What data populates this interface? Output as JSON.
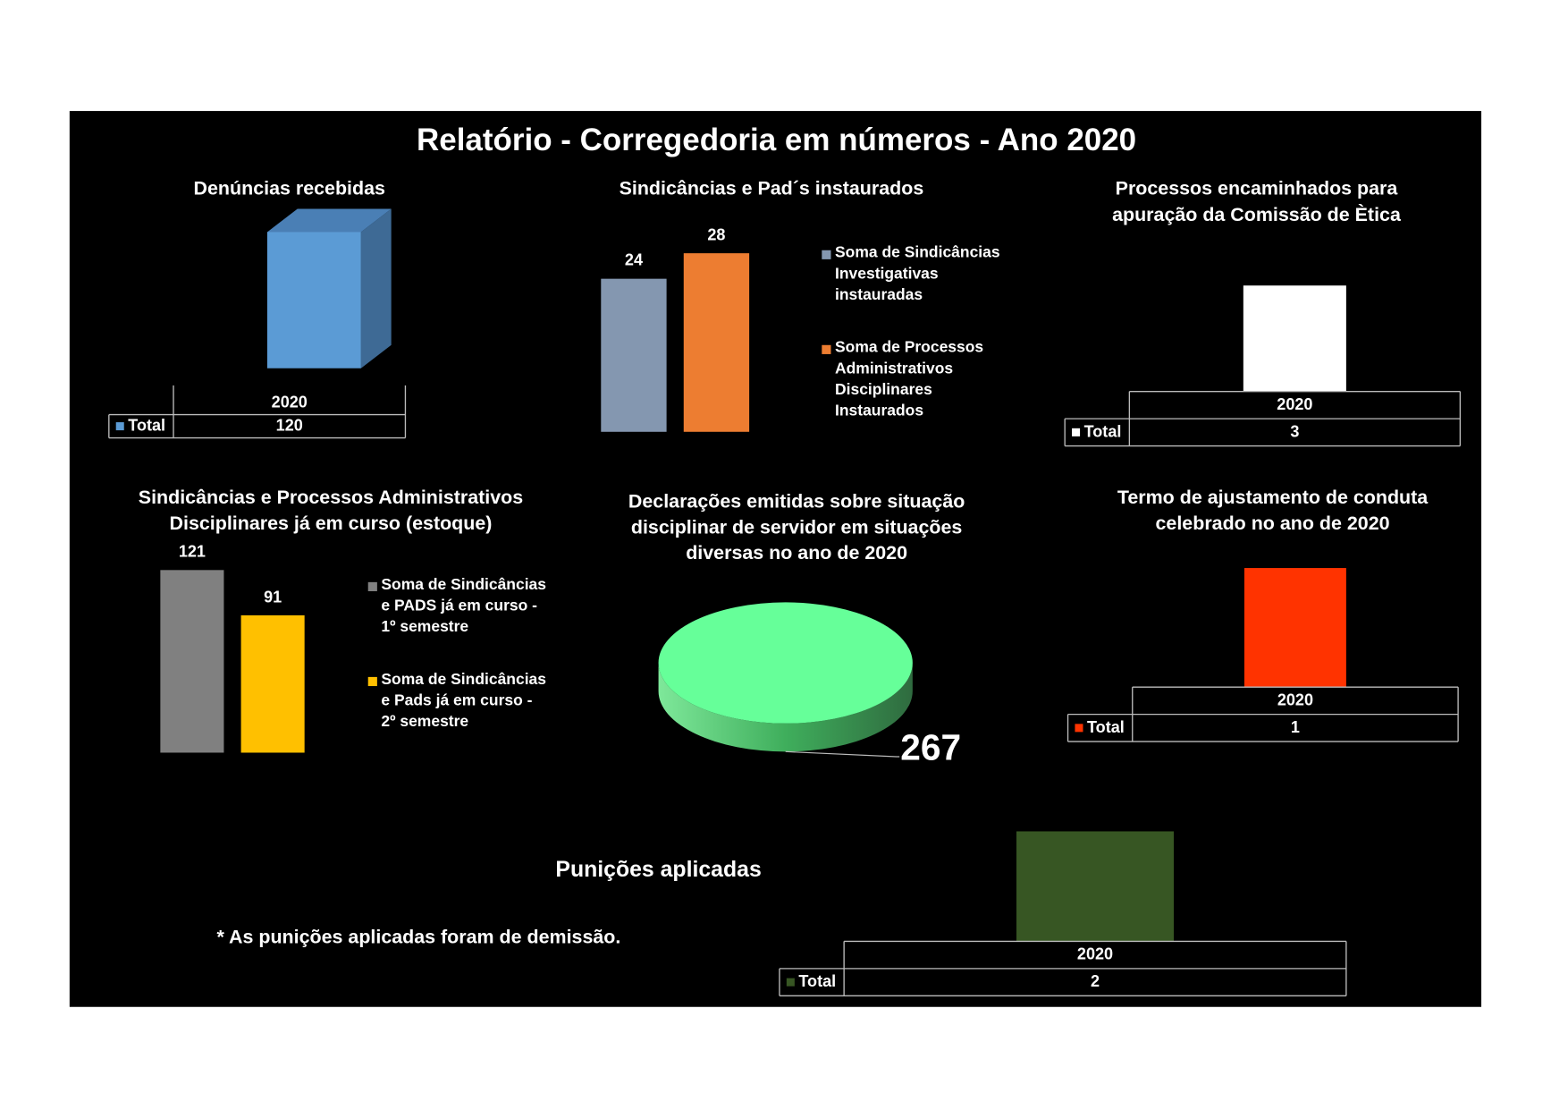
{
  "title": "Relatório - Corregedoria em números - Ano 2020",
  "chart_data": [
    {
      "type": "bar3d",
      "title": "Denúncias recebidas",
      "categories": [
        "2020"
      ],
      "series": [
        {
          "name": "Total",
          "color": "#5b9bd5",
          "values": [
            120
          ]
        }
      ],
      "data_table": true
    },
    {
      "type": "bar",
      "title": "Sindicâncias e Pad´s instaurados",
      "categories": [
        null
      ],
      "series": [
        {
          "name": "Soma de Sindicâncias Investigativas instauradas",
          "color": "#8497b0",
          "values": [
            24
          ]
        },
        {
          "name": "Soma de Processos Administrativos Disciplinares Instaurados",
          "color": "#ed7d31",
          "values": [
            28
          ]
        }
      ],
      "legend": "right"
    },
    {
      "type": "bar",
      "title": "Processos encaminhados para apuração da Comissão de Ètica",
      "categories": [
        "2020"
      ],
      "series": [
        {
          "name": "Total",
          "color": "#ffffff",
          "values": [
            3
          ]
        }
      ],
      "data_table": true
    },
    {
      "type": "bar",
      "title": "Sindicâncias e Processos Administrativos Disciplinares já em curso (estoque)",
      "categories": [
        null
      ],
      "series": [
        {
          "name": "Soma de Sindicâncias e PADS já em curso - 1º semestre",
          "color": "#808080",
          "values": [
            121
          ]
        },
        {
          "name": "Soma de Sindicâncias e Pads já em curso - 2º semestre",
          "color": "#ffc000",
          "values": [
            91
          ]
        }
      ],
      "legend": "right"
    },
    {
      "type": "pie3d",
      "title": "Declarações emitidas sobre situação disciplinar de servidor em situações diversas  no ano de 2020",
      "values": [
        267
      ],
      "colors": [
        "#66ff99"
      ]
    },
    {
      "type": "bar",
      "title": "Termo de ajustamento de conduta celebrado no ano de 2020",
      "categories": [
        "2020"
      ],
      "series": [
        {
          "name": "Total",
          "color": "#ff3300",
          "values": [
            1
          ]
        }
      ],
      "data_table": true
    },
    {
      "type": "bar",
      "title": "Punições aplicadas",
      "categories": [
        "2020"
      ],
      "series": [
        {
          "name": "Total",
          "color": "#375623",
          "values": [
            2
          ]
        }
      ],
      "data_table": true,
      "annotations": [
        "* As punições aplicadas foram de demissão."
      ]
    }
  ]
}
